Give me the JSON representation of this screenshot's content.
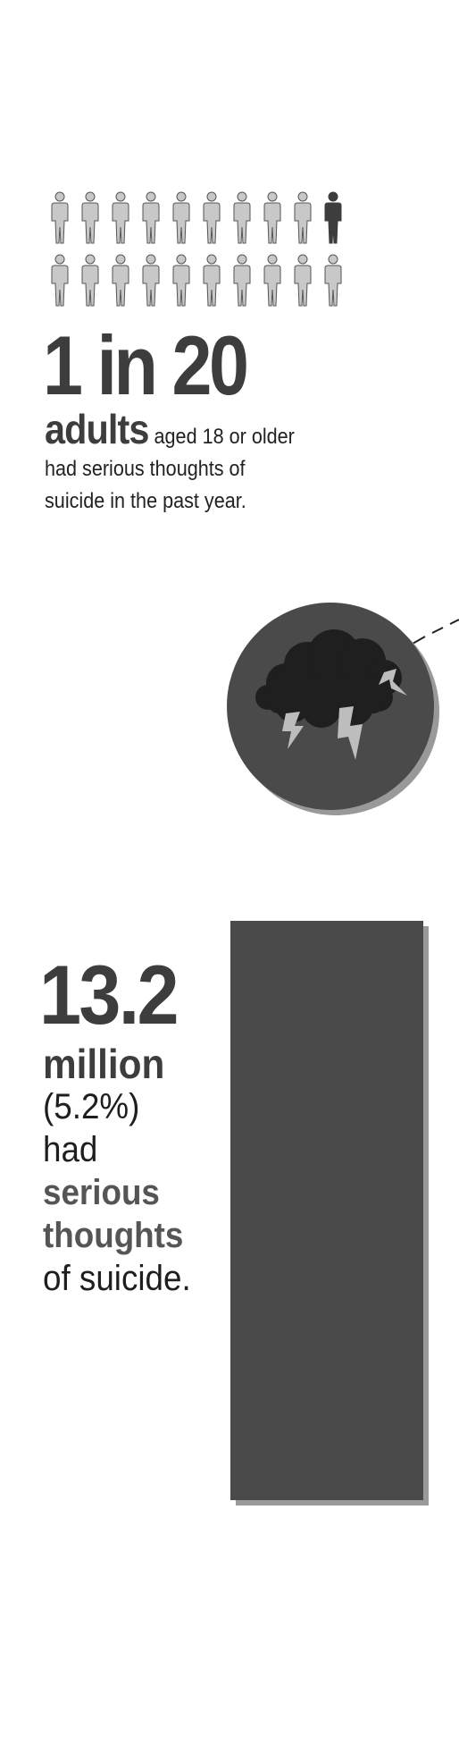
{
  "pictograph": {
    "total": 20,
    "highlighted": 1,
    "base_color": "#c8c8c8",
    "highlight_color": "#3d3d3d"
  },
  "headline": {
    "stat": "1 in 20",
    "emphasis": "adults",
    "description": "aged 18 or older had serious thoughts of suicide in the past year."
  },
  "storm_icon": {
    "icon": "storm-cloud-icon",
    "circle_color": "#4a4a4a",
    "cloud_color": "#1f1f1f",
    "lightning_color": "#bdbdbd"
  },
  "million_stat": {
    "value": "13.2",
    "unit": "million",
    "percent": "(5.2%)",
    "line_had": "had",
    "line_serious": "serious",
    "line_thoughts": "thoughts",
    "line_suicide": "of suicide."
  },
  "chart_data": {
    "type": "bar",
    "categories": [
      ""
    ],
    "values": [
      5.2
    ],
    "ylim": [
      0,
      5.2
    ],
    "grid": false,
    "bar_color": "#4a4a4a",
    "shadow_color": "#9a9a9a"
  }
}
